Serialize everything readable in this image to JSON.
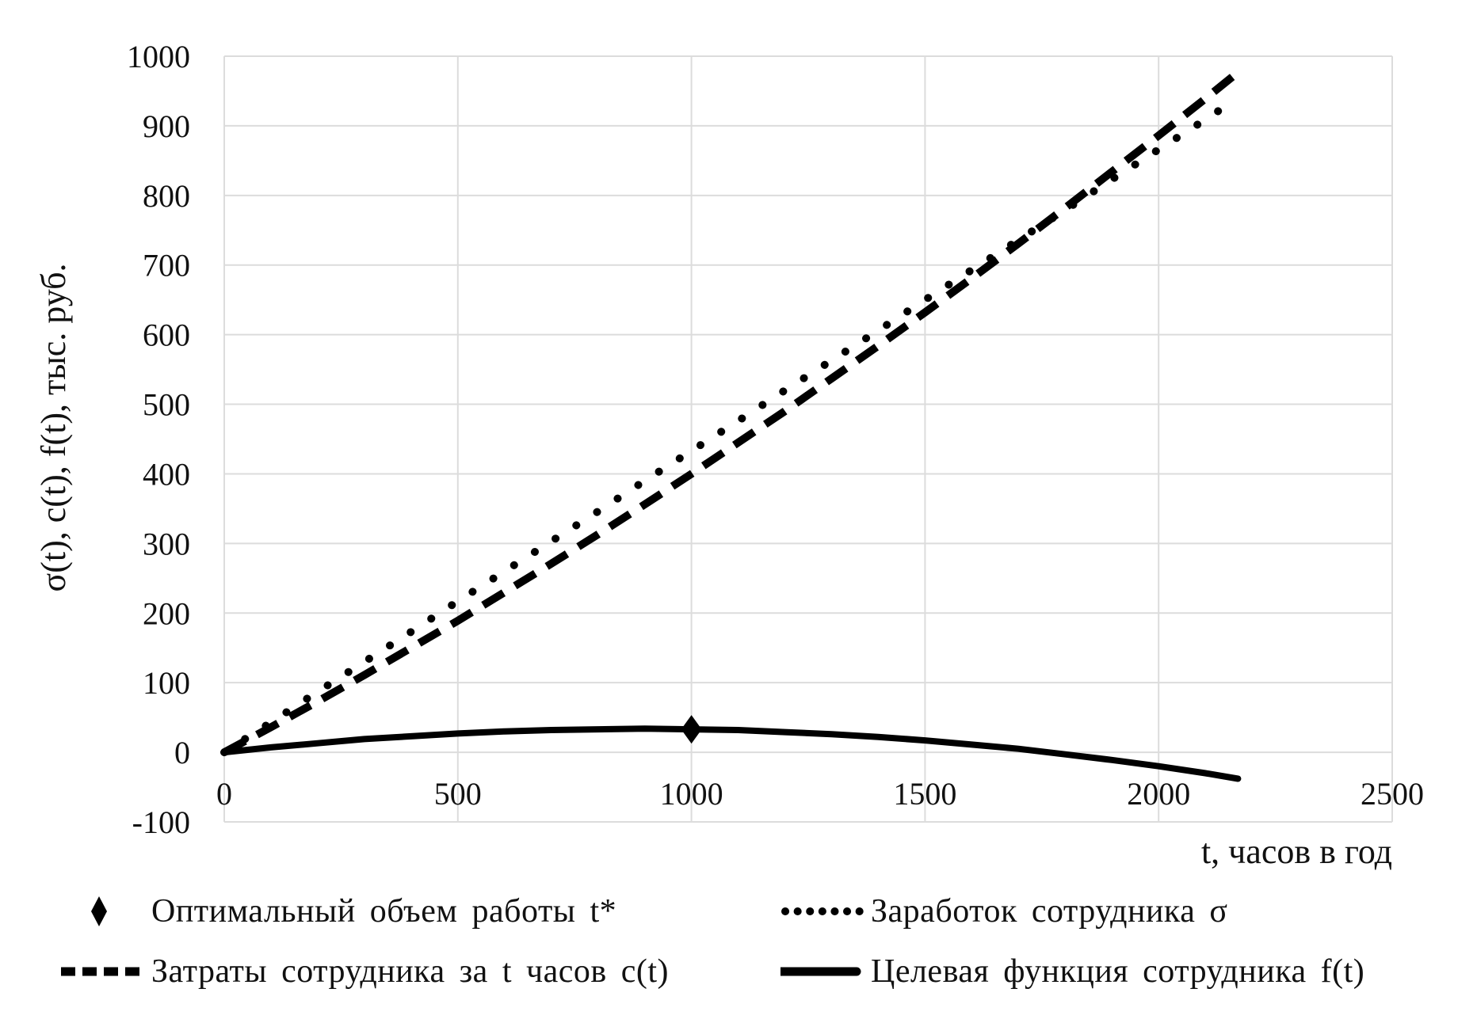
{
  "figure": {
    "background": "#ffffff",
    "text_color": "#111111"
  },
  "chart_data": {
    "type": "line",
    "title": "",
    "xlabel": "t, часов в год",
    "ylabel": "σ(t), c(t), f(t), тыс. руб.",
    "xlim": [
      0,
      2500
    ],
    "ylim": [
      -100,
      1000
    ],
    "xticks": [
      0,
      500,
      1000,
      1500,
      2000,
      2500
    ],
    "yticks": [
      -100,
      0,
      100,
      200,
      300,
      400,
      500,
      600,
      700,
      800,
      900,
      1000
    ],
    "grid": true,
    "legend_position": "bottom",
    "colors": {
      "line": "#000000",
      "grid": "#dcdcdc",
      "marker": "#000000"
    },
    "x": [
      0,
      100,
      200,
      300,
      400,
      500,
      600,
      700,
      800,
      900,
      1000,
      1100,
      1200,
      1300,
      1400,
      1500,
      1600,
      1700,
      1800,
      1900,
      2000,
      2100,
      2170
    ],
    "series": [
      {
        "id": "earnings-sigma",
        "name": "Заработок сотрудника σ",
        "style": "dotted",
        "values": [
          0,
          43,
          87,
          130,
          173,
          217,
          260,
          303,
          346,
          390,
          433,
          476,
          520,
          563,
          606,
          650,
          693,
          736,
          779,
          823,
          866,
          909,
          940
        ]
      },
      {
        "id": "costs-c",
        "name": "Затраты сотрудника за t часов c(t)",
        "style": "dashed",
        "values": [
          0,
          36,
          73,
          111,
          150,
          189,
          230,
          271,
          313,
          356,
          400,
          445,
          490,
          537,
          584,
          632,
          681,
          731,
          782,
          834,
          886,
          939,
          977
        ]
      },
      {
        "id": "objective-f",
        "name": "Целевая функция сотрудника f(t)",
        "style": "solid",
        "values": [
          0,
          7,
          13,
          19,
          23,
          27,
          30,
          32,
          33,
          34,
          33,
          32,
          29,
          26,
          22,
          17,
          11,
          5,
          -3,
          -11,
          -20,
          -30,
          -38
        ]
      }
    ],
    "marker_point": {
      "name": "Оптимальный объем работы t*",
      "shape": "diamond",
      "x": 1000,
      "y": 33
    }
  },
  "legend": {
    "items": [
      {
        "label": "Оптимальный объем работы t*",
        "swatch": "diamond",
        "glyph": "♦"
      },
      {
        "label": "Заработок сотрудника σ",
        "swatch": "dotted"
      },
      {
        "label": "Затраты сотрудника за t часов c(t)",
        "swatch": "dashed"
      },
      {
        "label": "Целевая функция сотрудника f(t)",
        "swatch": "solid"
      }
    ]
  }
}
